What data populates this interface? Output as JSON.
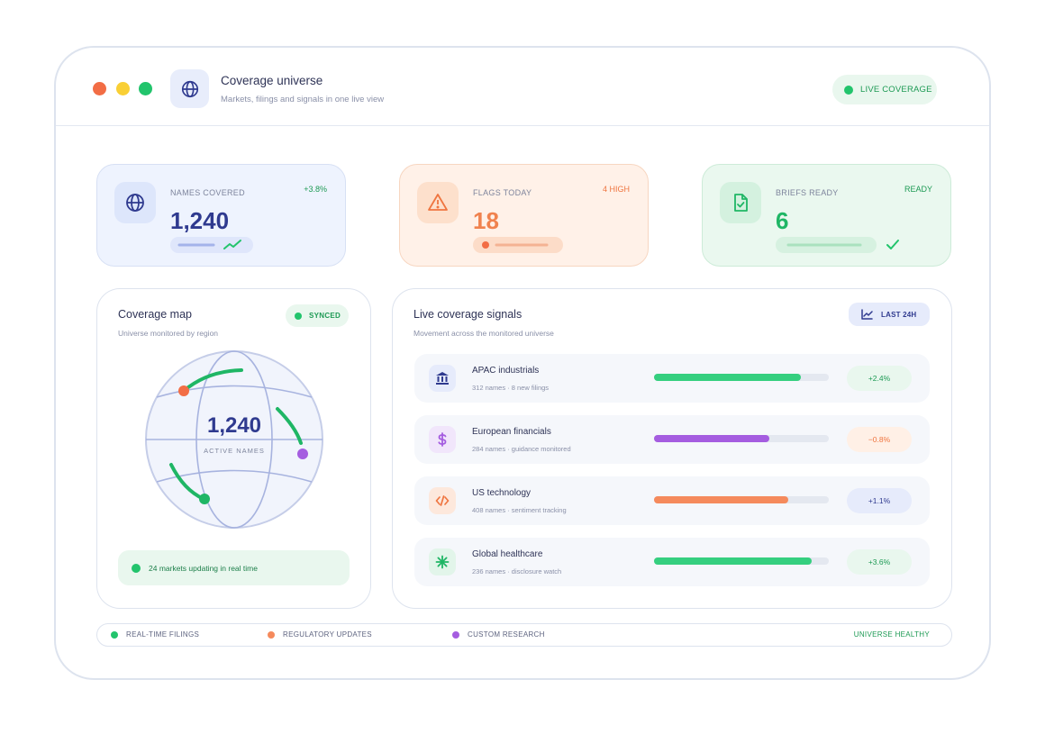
{
  "header": {
    "title": "Coverage universe",
    "subtitle": "Markets, filings and signals in one live view",
    "live_label": "LIVE COVERAGE",
    "icon": "globe-icon"
  },
  "stats": {
    "names": {
      "label": "NAMES COVERED",
      "value": "1,240",
      "badge": "+3.8%",
      "icon": "globe-icon",
      "trend_icon": "trend-up-icon"
    },
    "flags": {
      "label": "FLAGS TODAY",
      "value": "18",
      "badge": "4 HIGH",
      "icon": "alert-triangle-icon"
    },
    "briefs": {
      "label": "BRIEFS READY",
      "value": "6",
      "badge": "READY",
      "icon": "file-check-icon",
      "check_icon": "check-icon"
    }
  },
  "map": {
    "title": "Coverage map",
    "subtitle": "Universe monitored by region",
    "synced_label": "SYNCED",
    "center_value": "1,240",
    "center_label": "ACTIVE NAMES",
    "footer": "24 markets updating in real time"
  },
  "signals": {
    "title": "Live coverage signals",
    "subtitle": "Movement across the monitored universe",
    "range_label": "LAST 24H",
    "rows": [
      {
        "name": "APAC industrials",
        "detail": "312 names · 8 new filings",
        "progress": 0.84,
        "delta": "+2.4%",
        "icon": "bank-icon",
        "color": "#35cf7f",
        "delta_bg": "#e9f7ee",
        "delta_color": "#1d9a54",
        "icon_bg": "#e6ebfb"
      },
      {
        "name": "European financials",
        "detail": "284 names · guidance monitored",
        "progress": 0.66,
        "delta": "−0.8%",
        "icon": "dollar-icon",
        "color": "#a55de0",
        "delta_bg": "#fff0e6",
        "delta_color": "#ef7540",
        "icon_bg": "#f1e6fb"
      },
      {
        "name": "US technology",
        "detail": "408 names · sentiment tracking",
        "progress": 0.77,
        "delta": "+1.1%",
        "icon": "code-icon",
        "color": "#f58a5c",
        "delta_bg": "#e6ebfb",
        "delta_color": "#2f3a8f",
        "icon_bg": "#fde8dc"
      },
      {
        "name": "Global healthcare",
        "detail": "236 names · disclosure watch",
        "progress": 0.9,
        "delta": "+3.6%",
        "icon": "asterisk-icon",
        "color": "#35cf7f",
        "delta_bg": "#e9f7ee",
        "delta_color": "#1d9a54",
        "icon_bg": "#e2f5ea"
      }
    ]
  },
  "legend": {
    "items": [
      {
        "label": "REAL-TIME FILINGS",
        "color": "#22c46c"
      },
      {
        "label": "REGULATORY UPDATES",
        "color": "#f58a5c"
      },
      {
        "label": "CUSTOM RESEARCH",
        "color": "#a55de0"
      }
    ],
    "status": "UNIVERSE HEALTHY"
  }
}
